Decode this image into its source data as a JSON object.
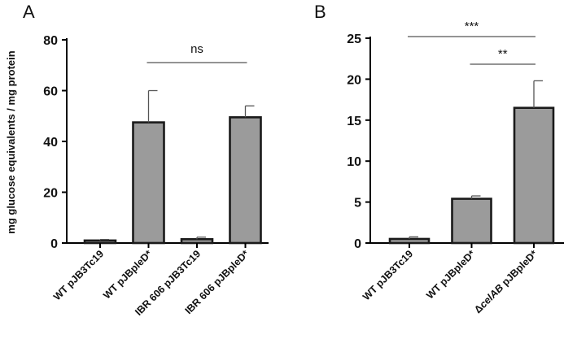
{
  "chart_data": [
    {
      "type": "bar",
      "panel": "A",
      "ylabel": "mg glucose equivalents / mg protein",
      "ylim": [
        0,
        80
      ],
      "yticks": [
        "0",
        "20",
        "40",
        "60",
        "80"
      ],
      "categories": [
        "WT pJB3Tc19",
        "WT pJBpleD*",
        "IBR 606 pJB3Tc19",
        "IBR 606 pJBpleD*"
      ],
      "values": [
        1.0,
        47.5,
        1.5,
        49.5
      ],
      "errors": [
        0.4,
        12.5,
        0.8,
        4.5
      ],
      "annotations": [
        {
          "text": "ns",
          "from_category": 1,
          "to_category": 3
        }
      ]
    },
    {
      "type": "bar",
      "panel": "B",
      "ylabel": "",
      "ylim": [
        0,
        25
      ],
      "yticks": [
        "0",
        "5",
        "10",
        "15",
        "20",
        "25"
      ],
      "categories": [
        "WT pJB3Tc19",
        "WT pJBpleD*",
        "ΔcelAB pJBpleD*"
      ],
      "values": [
        0.5,
        5.4,
        16.5
      ],
      "errors": [
        0.25,
        0.35,
        3.3
      ],
      "annotations": [
        {
          "text": "***",
          "from_category": 0,
          "to_category": 2
        },
        {
          "text": "**",
          "from_category": 1,
          "to_category": 2
        }
      ]
    }
  ]
}
